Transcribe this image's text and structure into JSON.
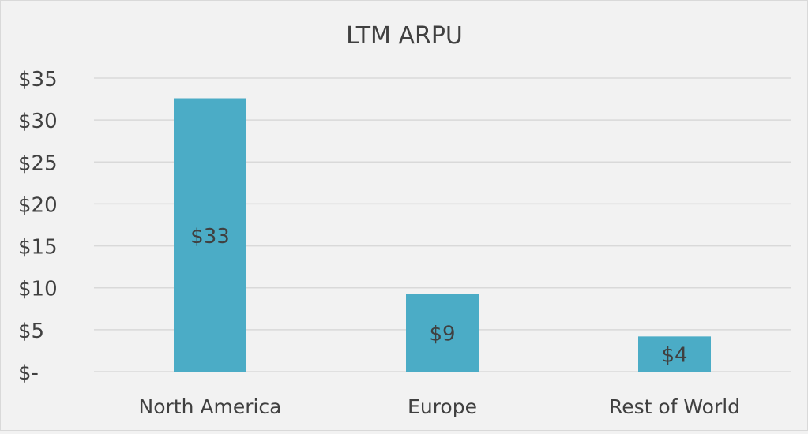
{
  "chart_data": {
    "type": "bar",
    "title": "LTM ARPU",
    "xlabel": "",
    "ylabel": "",
    "categories": [
      "North America",
      "Europe",
      "Rest of World"
    ],
    "values": [
      32.6,
      9.3,
      4.2
    ],
    "data_labels": [
      "$33",
      "$9",
      "$4"
    ],
    "ylim": [
      0,
      35
    ],
    "yticks": [
      0,
      5,
      10,
      15,
      20,
      25,
      30,
      35
    ],
    "ytick_labels": [
      "$-",
      "$5",
      "$10",
      "$15",
      "$20",
      "$25",
      "$30",
      "$35"
    ],
    "grid": true,
    "legend": "none",
    "colors": {
      "bar": "#4bacc6",
      "background": "#f2f2f2",
      "gridline": "#d9d9d9",
      "text": "#404040"
    }
  }
}
